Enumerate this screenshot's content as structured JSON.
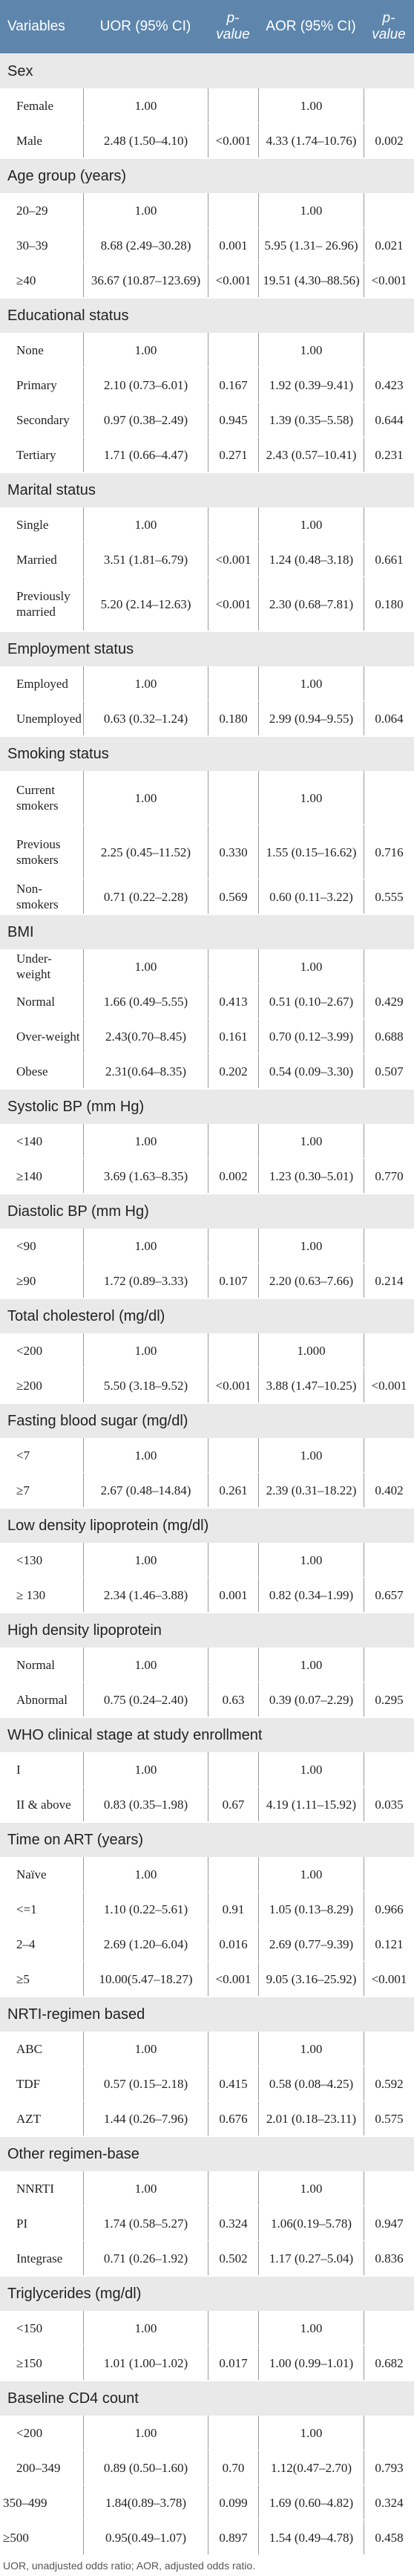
{
  "headers": {
    "variables": "Variables",
    "uor": "UOR (95% CI)",
    "p1": "p-value",
    "aor": "AOR (95% CI)",
    "p2": "p-value"
  },
  "sections": [
    {
      "title": "Sex",
      "rows": [
        {
          "label": "Female",
          "uor": "1.00",
          "p1": "",
          "aor": "1.00",
          "p2": ""
        },
        {
          "label": "Male",
          "uor": "2.48 (1.50–4.10)",
          "p1": "<0.001",
          "aor": "4.33 (1.74–10.76)",
          "p2": "0.002"
        }
      ]
    },
    {
      "title": "Age group (years)",
      "rows": [
        {
          "label": "20–29",
          "uor": "1.00",
          "p1": "",
          "aor": "1.00",
          "p2": ""
        },
        {
          "label": "30–39",
          "uor": "8.68 (2.49–30.28)",
          "p1": "0.001",
          "aor": "5.95 (1.31– 26.96)",
          "p2": "0.021"
        },
        {
          "label": "≥40",
          "uor": "36.67 (10.87–123.69)",
          "p1": "<0.001",
          "aor": "19.51 (4.30–88.56)",
          "p2": "<0.001"
        }
      ]
    },
    {
      "title": "Educational status",
      "rows": [
        {
          "label": "None",
          "uor": "1.00",
          "p1": "",
          "aor": "1.00",
          "p2": ""
        },
        {
          "label": "Primary",
          "uor": "2.10 (0.73–6.01)",
          "p1": "0.167",
          "aor": "1.92 (0.39–9.41)",
          "p2": "0.423"
        },
        {
          "label": "Secondary",
          "uor": "0.97 (0.38–2.49)",
          "p1": "0.945",
          "aor": "1.39 (0.35–5.58)",
          "p2": "0.644"
        },
        {
          "label": "Tertiary",
          "uor": "1.71 (0.66–4.47)",
          "p1": "0.271",
          "aor": "2.43 (0.57–10.41)",
          "p2": "0.231"
        }
      ]
    },
    {
      "title": "Marital status",
      "rows": [
        {
          "label": "Single",
          "uor": "1.00",
          "p1": "",
          "aor": "1.00",
          "p2": ""
        },
        {
          "label": "Married",
          "uor": "3.51 (1.81–6.79)",
          "p1": "<0.001",
          "aor": "1.24 (0.48–3.18)",
          "p2": "0.661"
        },
        {
          "label": "Previously married",
          "uor": "5.20 (2.14–12.63)",
          "p1": "<0.001",
          "aor": "2.30 (0.68–7.81)",
          "p2": "0.180",
          "tall": true
        }
      ]
    },
    {
      "title": "Employment status",
      "rows": [
        {
          "label": "Employed",
          "uor": "1.00",
          "p1": "",
          "aor": "1.00",
          "p2": ""
        },
        {
          "label": "Unemployed",
          "uor": "0.63 (0.32–1.24)",
          "p1": "0.180",
          "aor": "2.99 (0.94–9.55)",
          "p2": "0.064"
        }
      ]
    },
    {
      "title": "Smoking status",
      "rows": [
        {
          "label": "Current smokers",
          "uor": "1.00",
          "p1": "",
          "aor": "1.00",
          "p2": "",
          "tall": true
        },
        {
          "label": "Previous smokers",
          "uor": "2.25 (0.45–11.52)",
          "p1": "0.330",
          "aor": "1.55 (0.15–16.62)",
          "p2": "0.716",
          "tall": true
        },
        {
          "label": "Non-smokers",
          "uor": "0.71 (0.22–2.28)",
          "p1": "0.569",
          "aor": "0.60 (0.11–3.22)",
          "p2": "0.555"
        }
      ]
    },
    {
      "title": "BMI",
      "rows": [
        {
          "label": "Under-weight",
          "uor": "1.00",
          "p1": "",
          "aor": "1.00",
          "p2": ""
        },
        {
          "label": "Normal",
          "uor": "1.66 (0.49–5.55)",
          "p1": "0.413",
          "aor": "0.51 (0.10–2.67)",
          "p2": "0.429"
        },
        {
          "label": "Over-weight",
          "uor": "2.43(0.70–8.45)",
          "p1": "0.161",
          "aor": "0.70 (0.12–3.99)",
          "p2": "0.688"
        },
        {
          "label": "Obese",
          "uor": "2.31(0.64–8.35)",
          "p1": "0.202",
          "aor": "0.54 (0.09–3.30)",
          "p2": "0.507"
        }
      ]
    },
    {
      "title": "Systolic BP (mm Hg)",
      "rows": [
        {
          "label": "<140",
          "uor": "1.00",
          "p1": "",
          "aor": "1.00",
          "p2": ""
        },
        {
          "label": "≥140",
          "uor": "3.69 (1.63–8.35)",
          "p1": "0.002",
          "aor": "1.23 (0.30–5.01)",
          "p2": "0.770"
        }
      ]
    },
    {
      "title": "Diastolic BP (mm Hg)",
      "rows": [
        {
          "label": "<90",
          "uor": "1.00",
          "p1": "",
          "aor": "1.00",
          "p2": ""
        },
        {
          "label": "≥90",
          "uor": "1.72 (0.89–3.33)",
          "p1": "0.107",
          "aor": "2.20 (0.63–7.66)",
          "p2": "0.214"
        }
      ]
    },
    {
      "title": "Total cholesterol (mg/dl)",
      "rows": [
        {
          "label": "<200",
          "uor": "1.00",
          "p1": "",
          "aor": "1.000",
          "p2": ""
        },
        {
          "label": "≥200",
          "uor": "5.50 (3.18–9.52)",
          "p1": "<0.001",
          "aor": "3.88 (1.47–10.25)",
          "p2": "<0.001"
        }
      ]
    },
    {
      "title": "Fasting blood sugar (mg/dl)",
      "rows": [
        {
          "label": "<7",
          "uor": "1.00",
          "p1": "",
          "aor": "1.00",
          "p2": ""
        },
        {
          "label": "≥7",
          "uor": "2.67 (0.48–14.84)",
          "p1": "0.261",
          "aor": "2.39 (0.31–18.22)",
          "p2": "0.402"
        }
      ]
    },
    {
      "title": "Low density lipoprotein (mg/dl)",
      "rows": [
        {
          "label": "<130",
          "uor": "1.00",
          "p1": "",
          "aor": "1.00",
          "p2": ""
        },
        {
          "label": "≥ 130",
          "uor": "2.34 (1.46–3.88)",
          "p1": "0.001",
          "aor": "0.82 (0.34–1.99)",
          "p2": "0.657"
        }
      ]
    },
    {
      "title": "High density lipoprotein",
      "rows": [
        {
          "label": "Normal",
          "uor": "1.00",
          "p1": "",
          "aor": "1.00",
          "p2": ""
        },
        {
          "label": "Abnormal",
          "uor": "0.75 (0.24–2.40)",
          "p1": "0.63",
          "aor": "0.39 (0.07–2.29)",
          "p2": "0.295"
        }
      ]
    },
    {
      "title": "WHO clinical stage at study enrollment",
      "rows": [
        {
          "label": "I",
          "uor": "1.00",
          "p1": "",
          "aor": "1.00",
          "p2": ""
        },
        {
          "label": "II & above",
          "uor": "0.83 (0.35–1.98)",
          "p1": "0.67",
          "aor": "4.19 (1.11–15.92)",
          "p2": "0.035"
        }
      ]
    },
    {
      "title": "Time on ART (years)",
      "rows": [
        {
          "label": "Naïve",
          "uor": "1.00",
          "p1": "",
          "aor": "1.00",
          "p2": ""
        },
        {
          "label": "<=1",
          "uor": "1.10 (0.22–5.61)",
          "p1": "0.91",
          "aor": "1.05 (0.13–8.29)",
          "p2": "0.966"
        },
        {
          "label": "2–4",
          "uor": "2.69 (1.20–6.04)",
          "p1": "0.016",
          "aor": "2.69 (0.77–9.39)",
          "p2": "0.121"
        },
        {
          "label": "≥5",
          "uor": "10.00(5.47–18.27)",
          "p1": "<0.001",
          "aor": "9.05 (3.16–25.92)",
          "p2": "<0.001"
        }
      ]
    },
    {
      "title": "NRTI-regimen based",
      "rows": [
        {
          "label": "ABC",
          "uor": "1.00",
          "p1": "",
          "aor": "1.00",
          "p2": ""
        },
        {
          "label": "TDF",
          "uor": "0.57 (0.15–2.18)",
          "p1": "0.415",
          "aor": "0.58 (0.08–4.25)",
          "p2": "0.592"
        },
        {
          "label": "AZT",
          "uor": "1.44 (0.26–7.96)",
          "p1": "0.676",
          "aor": "2.01 (0.18–23.11)",
          "p2": "0.575"
        }
      ]
    },
    {
      "title": "Other regimen-base",
      "rows": [
        {
          "label": "NNRTI",
          "uor": "1.00",
          "p1": "",
          "aor": "1.00",
          "p2": ""
        },
        {
          "label": "PI",
          "uor": "1.74 (0.58–5.27)",
          "p1": "0.324",
          "aor": "1.06(0.19–5.78)",
          "p2": "0.947"
        },
        {
          "label": "Integrase",
          "uor": "0.71 (0.26–1.92)",
          "p1": "0.502",
          "aor": "1.17 (0.27–5.04)",
          "p2": "0.836"
        }
      ]
    },
    {
      "title": "Triglycerides (mg/dl)",
      "rows": [
        {
          "label": "<150",
          "uor": "1.00",
          "p1": "",
          "aor": "1.00",
          "p2": ""
        },
        {
          "label": "≥150",
          "uor": "1.01 (1.00–1.02)",
          "p1": "0.017",
          "aor": "1.00 (0.99–1.01)",
          "p2": "0.682"
        }
      ]
    },
    {
      "title": "Baseline CD4 count",
      "rows": [
        {
          "label": "<200",
          "uor": "1.00",
          "p1": "",
          "aor": "1.00",
          "p2": ""
        },
        {
          "label": "200–349",
          "uor": "0.89 (0.50–1.60)",
          "p1": "0.70",
          "aor": "1.12(0.47–2.70)",
          "p2": "0.793"
        },
        {
          "label": "350–499",
          "uor": "1.84(0.89–3.78)",
          "p1": "0.099",
          "aor": "1.69 (0.60–4.82)",
          "p2": "0.324",
          "noIndent": true
        },
        {
          "label": "≥500",
          "uor": "0.95(0.49–1.07)",
          "p1": "0.897",
          "aor": "1.54 (0.49–4.78)",
          "p2": "0.458",
          "noIndent": true
        }
      ]
    }
  ],
  "footnote": "UOR, unadjusted odds ratio; AOR, adjusted odds ratio.",
  "colors": {
    "header_bg": "#5e86ad",
    "section_bg": "#e9e9e9",
    "row_bg": "#ffffff"
  }
}
